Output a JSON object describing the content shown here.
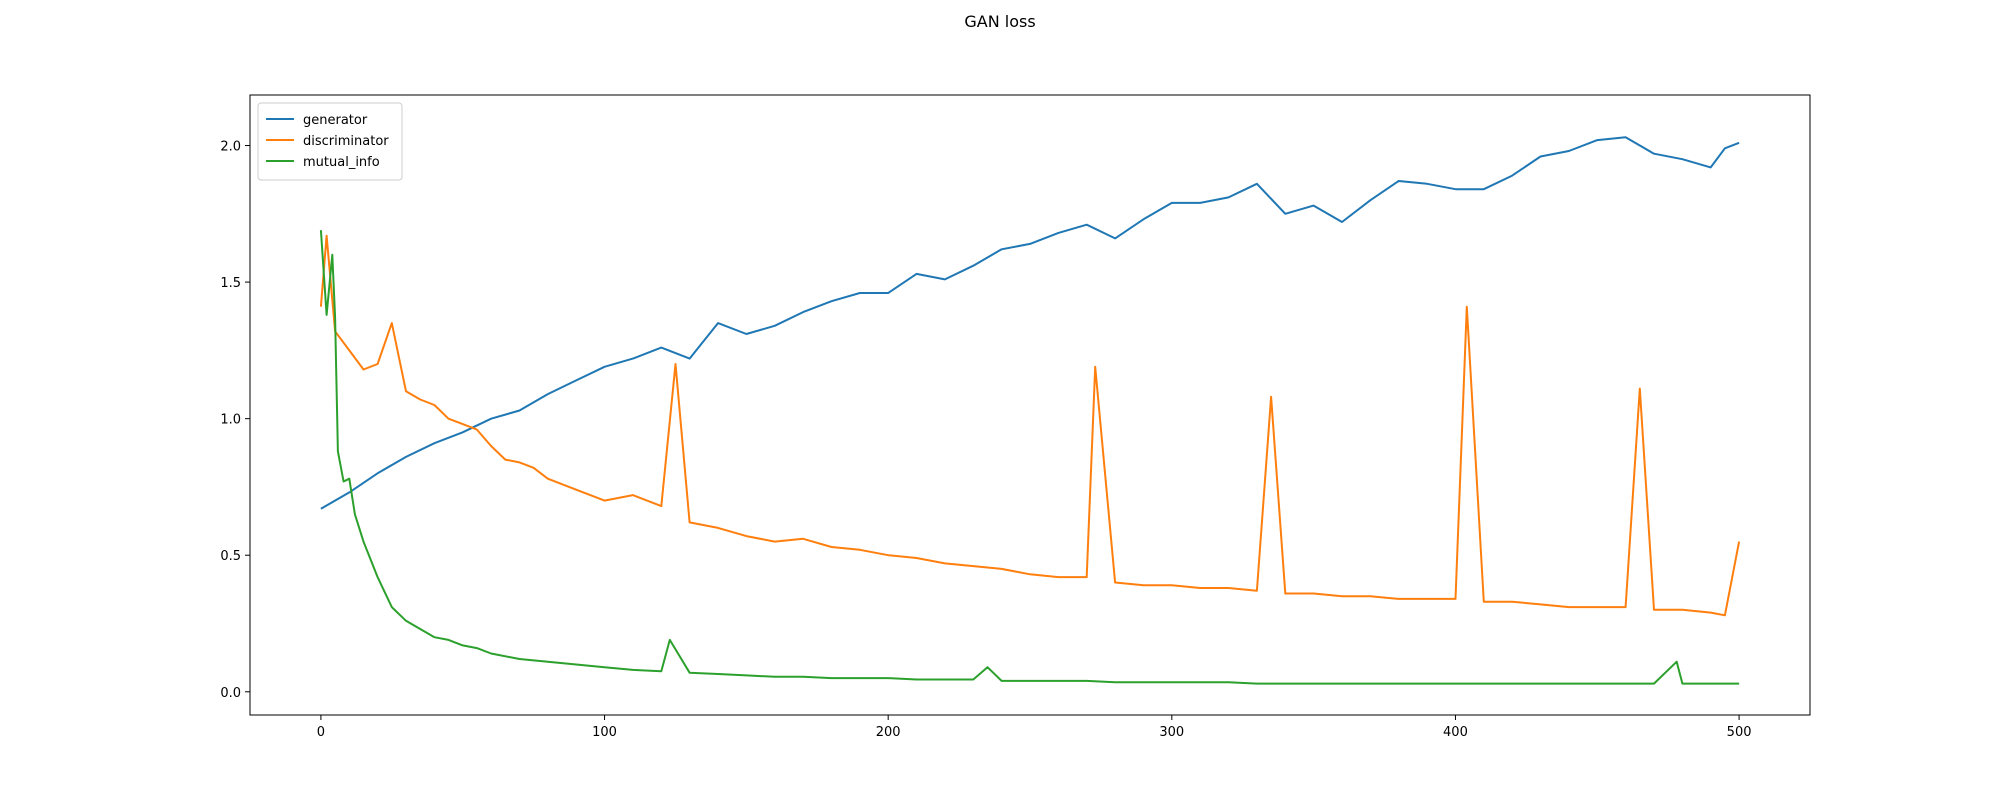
{
  "chart_data": {
    "type": "line",
    "title": "GAN loss",
    "xlabel": "",
    "ylabel": "",
    "xlim": [
      -25,
      525
    ],
    "ylim": [
      -0.085,
      2.185
    ],
    "xticks": [
      0,
      100,
      200,
      300,
      400,
      500
    ],
    "yticks": [
      0.0,
      0.5,
      1.0,
      1.5,
      2.0
    ],
    "xtick_labels": [
      "0",
      "100",
      "200",
      "300",
      "400",
      "500"
    ],
    "ytick_labels": [
      "0.0",
      "0.5",
      "1.0",
      "1.5",
      "2.0"
    ],
    "grid": false,
    "legend": "top-left",
    "series": [
      {
        "name": "generator",
        "color": "#1f77b4",
        "x": [
          0,
          10,
          20,
          30,
          40,
          50,
          60,
          70,
          80,
          90,
          100,
          110,
          120,
          130,
          140,
          150,
          160,
          170,
          180,
          190,
          200,
          210,
          220,
          230,
          240,
          250,
          260,
          270,
          280,
          290,
          300,
          310,
          320,
          330,
          340,
          350,
          360,
          370,
          380,
          390,
          400,
          410,
          420,
          430,
          440,
          450,
          460,
          470,
          480,
          490,
          495,
          500
        ],
        "values": [
          0.67,
          0.73,
          0.8,
          0.86,
          0.91,
          0.95,
          1.0,
          1.03,
          1.09,
          1.14,
          1.19,
          1.22,
          1.26,
          1.22,
          1.35,
          1.31,
          1.34,
          1.39,
          1.43,
          1.46,
          1.46,
          1.53,
          1.51,
          1.56,
          1.62,
          1.64,
          1.68,
          1.71,
          1.66,
          1.73,
          1.79,
          1.79,
          1.81,
          1.86,
          1.75,
          1.78,
          1.72,
          1.8,
          1.87,
          1.86,
          1.84,
          1.84,
          1.89,
          1.96,
          1.98,
          2.02,
          2.03,
          1.97,
          1.95,
          1.92,
          1.99,
          2.01
        ]
      },
      {
        "name": "discriminator",
        "color": "#ff7f0e",
        "x": [
          0,
          2,
          5,
          10,
          15,
          20,
          25,
          30,
          35,
          40,
          45,
          50,
          55,
          60,
          65,
          70,
          75,
          80,
          90,
          100,
          110,
          120,
          125,
          130,
          140,
          150,
          160,
          170,
          180,
          190,
          200,
          210,
          220,
          230,
          240,
          250,
          260,
          270,
          273,
          280,
          290,
          300,
          310,
          320,
          330,
          335,
          340,
          350,
          360,
          370,
          380,
          390,
          400,
          404,
          410,
          420,
          430,
          440,
          450,
          460,
          465,
          470,
          480,
          490,
          495,
          500
        ],
        "values": [
          1.41,
          1.67,
          1.32,
          1.25,
          1.18,
          1.2,
          1.35,
          1.1,
          1.07,
          1.05,
          1.0,
          0.98,
          0.96,
          0.9,
          0.85,
          0.84,
          0.82,
          0.78,
          0.74,
          0.7,
          0.72,
          0.68,
          1.2,
          0.62,
          0.6,
          0.57,
          0.55,
          0.56,
          0.53,
          0.52,
          0.5,
          0.49,
          0.47,
          0.46,
          0.45,
          0.43,
          0.42,
          0.42,
          1.19,
          0.4,
          0.39,
          0.39,
          0.38,
          0.38,
          0.37,
          1.08,
          0.36,
          0.36,
          0.35,
          0.35,
          0.34,
          0.34,
          0.34,
          1.41,
          0.33,
          0.33,
          0.32,
          0.31,
          0.31,
          0.31,
          1.11,
          0.3,
          0.3,
          0.29,
          0.28,
          0.55
        ]
      },
      {
        "name": "mutual_info",
        "color": "#2ca02c",
        "x": [
          0,
          2,
          4,
          5,
          6,
          8,
          10,
          12,
          15,
          20,
          25,
          30,
          35,
          40,
          45,
          50,
          55,
          60,
          70,
          80,
          90,
          100,
          110,
          120,
          123,
          130,
          140,
          150,
          160,
          170,
          180,
          190,
          200,
          210,
          220,
          230,
          235,
          240,
          250,
          260,
          270,
          280,
          290,
          300,
          310,
          320,
          330,
          340,
          350,
          360,
          370,
          380,
          390,
          400,
          410,
          420,
          430,
          440,
          450,
          460,
          470,
          478,
          480,
          490,
          495,
          500
        ],
        "values": [
          1.69,
          1.38,
          1.6,
          1.37,
          0.88,
          0.77,
          0.78,
          0.65,
          0.55,
          0.42,
          0.31,
          0.26,
          0.23,
          0.2,
          0.19,
          0.17,
          0.16,
          0.14,
          0.12,
          0.11,
          0.1,
          0.09,
          0.08,
          0.075,
          0.19,
          0.07,
          0.065,
          0.06,
          0.055,
          0.055,
          0.05,
          0.05,
          0.05,
          0.045,
          0.045,
          0.045,
          0.09,
          0.04,
          0.04,
          0.04,
          0.04,
          0.035,
          0.035,
          0.035,
          0.035,
          0.035,
          0.03,
          0.03,
          0.03,
          0.03,
          0.03,
          0.03,
          0.03,
          0.03,
          0.03,
          0.03,
          0.03,
          0.03,
          0.03,
          0.03,
          0.03,
          0.11,
          0.03,
          0.03,
          0.03,
          0.03
        ]
      }
    ]
  }
}
